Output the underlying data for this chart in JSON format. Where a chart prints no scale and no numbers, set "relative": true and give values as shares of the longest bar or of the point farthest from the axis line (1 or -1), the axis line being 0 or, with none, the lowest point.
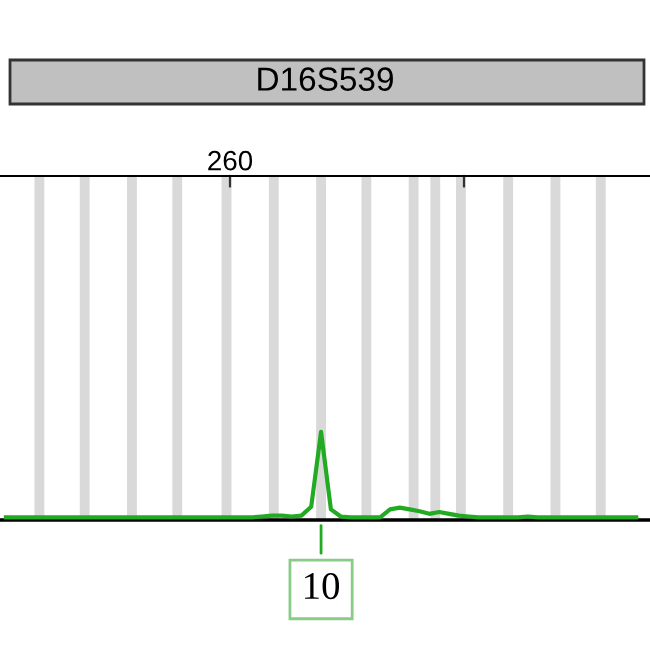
{
  "chart_data": {
    "type": "line",
    "title": "D16S539",
    "relative": true,
    "categories": [
      null,
      null,
      null,
      null,
      null,
      null,
      null,
      null,
      null,
      null,
      null,
      null,
      null,
      null,
      null,
      null,
      null,
      null,
      null,
      null,
      null,
      null,
      null,
      null,
      null,
      null,
      null,
      null,
      null,
      null,
      null,
      null,
      null,
      null,
      null,
      null,
      null,
      null,
      null,
      null,
      null,
      null,
      null,
      null,
      null,
      null,
      null,
      null,
      null,
      null,
      null,
      null,
      null,
      null,
      null,
      null,
      null,
      null,
      null,
      null,
      null,
      null,
      null,
      null,
      null
    ],
    "series": [
      {
        "color": "#22aa22",
        "values": [
          0.03,
          0.03,
          0.03,
          0.03,
          0.03,
          0.03,
          0.03,
          0.03,
          0.03,
          0.03,
          0.03,
          0.03,
          0.03,
          0.03,
          0.03,
          0.03,
          0.03,
          0.03,
          0.03,
          0.03,
          0.03,
          0.03,
          0.03,
          0.03,
          0.03,
          0.03,
          0.04,
          0.05,
          0.05,
          0.04,
          0.05,
          0.15,
          1,
          0.12,
          0.04,
          0.03,
          0.03,
          0.03,
          0.03,
          0.12,
          0.14,
          0.12,
          0.1,
          0.07,
          0.09,
          0.07,
          0.05,
          0.04,
          0.03,
          0.03,
          0.03,
          0.03,
          0.03,
          0.04,
          0.03,
          0.03,
          0.03,
          0.03,
          0.03,
          0.03,
          0.03,
          0.03,
          0.03,
          0.03,
          0.03
        ]
      }
    ],
    "annotations": [
      "260",
      "10"
    ],
    "marker": "none",
    "line_style": "solid"
  }
}
